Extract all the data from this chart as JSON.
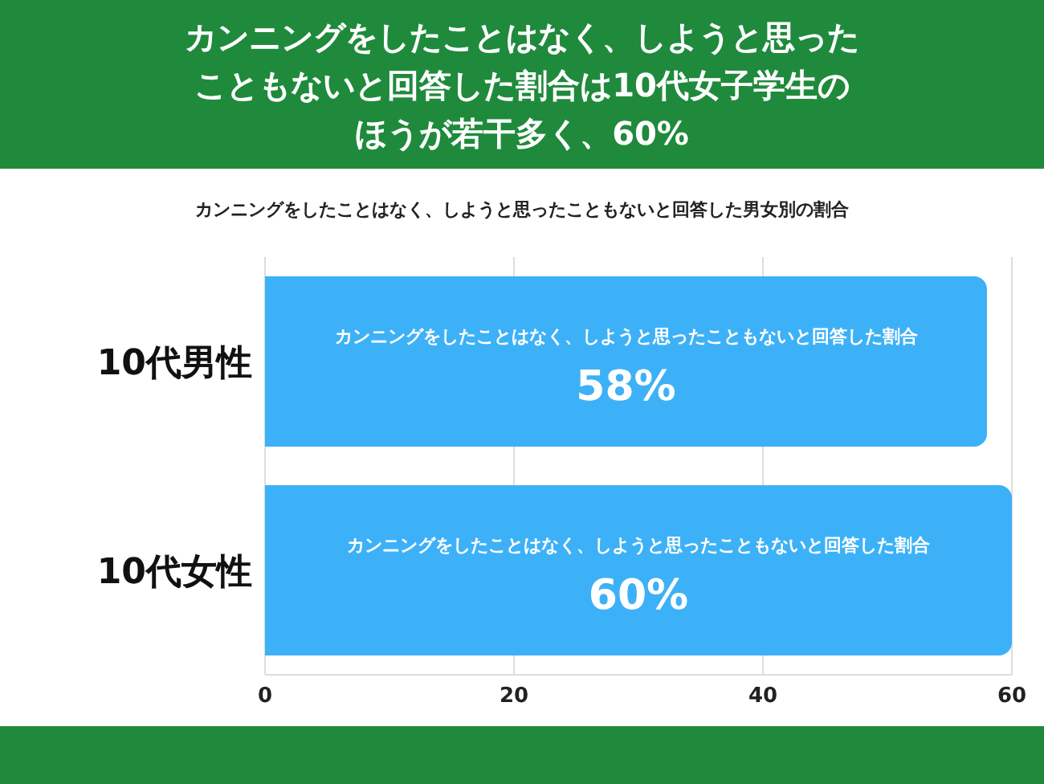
{
  "chart_data": {
    "type": "bar",
    "orientation": "horizontal",
    "title": "カンニングをしたことはなく、しようと思ったこともないと回答した割合は10代女子学生のほうが若干多く、60%",
    "subtitle": "カンニングをしたことはなく、しようと思ったこともないと回答した男女別の割合",
    "categories": [
      "10代男性",
      "10代女性"
    ],
    "series": [
      {
        "name": "カンニングをしたことはなく、しようと思ったこともないと回答した割合",
        "color": "#3db1f7",
        "values": [
          58,
          60
        ],
        "value_labels": [
          "58%",
          "60%"
        ]
      }
    ],
    "xlim": [
      0,
      60
    ],
    "xticks": [
      0,
      20,
      40,
      60
    ],
    "grid": "x",
    "legend": false
  }
}
